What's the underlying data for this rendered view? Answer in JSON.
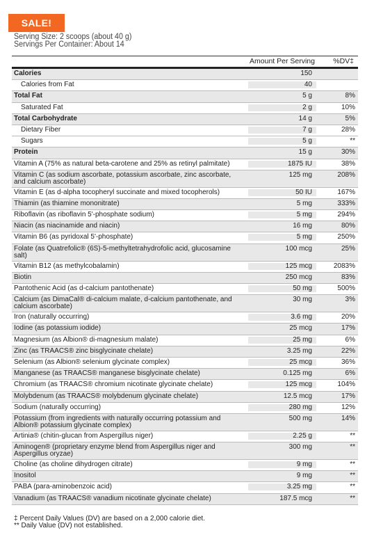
{
  "badge": {
    "label": "SALE!"
  },
  "serving": {
    "size": "Serving Size: 2 scoops (about 40 g)",
    "per_container": "Servings Per Container: About 14"
  },
  "header": {
    "amount": "Amount Per Serving",
    "dv": "%DV‡"
  },
  "rows": [
    {
      "name": "Calories",
      "amount": "150",
      "dv": "",
      "bold": true
    },
    {
      "name": "Calories from Fat",
      "amount": "40",
      "dv": "",
      "indent": true
    },
    {
      "name": "Total Fat",
      "amount": "5 g",
      "dv": "8%",
      "bold": true
    },
    {
      "name": "Saturated Fat",
      "amount": "2 g",
      "dv": "10%",
      "indent": true
    },
    {
      "name": "Total Carbohydrate",
      "amount": "14 g",
      "dv": "5%",
      "bold": true
    },
    {
      "name": "Dietary Fiber",
      "amount": "7 g",
      "dv": "28%",
      "indent": true
    },
    {
      "name": "Sugars",
      "amount": "5 g",
      "dv": "**",
      "indent": true
    },
    {
      "name": "Protein",
      "amount": "15 g",
      "dv": "30%",
      "bold": true
    },
    {
      "name": "Vitamin A (75% as natural beta-carotene and 25% as retinyl palmitate)",
      "amount": "1875 IU",
      "dv": "38%"
    },
    {
      "name": "Vitamin C (as sodium ascorbate, potassium ascorbate, zinc ascorbate, and calcium ascorbate)",
      "amount": "125 mg",
      "dv": "208%",
      "tall": true
    },
    {
      "name": "Vitamin E (as d-alpha tocopheryl succinate and mixed tocopherols)",
      "amount": "50 IU",
      "dv": "167%"
    },
    {
      "name": "Thiamin (as thiamine mononitrate)",
      "amount": "5 mg",
      "dv": "333%"
    },
    {
      "name": "Riboflavin (as riboflavin 5'-phosphate sodium)",
      "amount": "5 mg",
      "dv": "294%"
    },
    {
      "name": "Niacin (as niacinamide and niacin)",
      "amount": "16 mg",
      "dv": "80%"
    },
    {
      "name": "Vitamin B6 (as pyridoxal 5'-phosphate)",
      "amount": "5 mg",
      "dv": "250%"
    },
    {
      "name": "Folate (as Quatrefolic® (6S)-5-methyltetrahydrofolic acid, glucosamine salt)",
      "amount": "100 mcg",
      "dv": "25%",
      "tall": true
    },
    {
      "name": "Vitamin B12 (as methylcobalamin)",
      "amount": "125 mcg",
      "dv": "2083%"
    },
    {
      "name": "Biotin",
      "amount": "250 mcg",
      "dv": "83%"
    },
    {
      "name": "Pantothenic Acid (as d-calcium pantothenate)",
      "amount": "50 mg",
      "dv": "500%"
    },
    {
      "name": "Calcium (as DimaCal® di-calcium malate, d-calcium pantothenate, and calcium ascorbate)",
      "amount": "30 mg",
      "dv": "3%",
      "tall": true
    },
    {
      "name": "Iron (naturally occurring)",
      "amount": "3.6 mg",
      "dv": "20%"
    },
    {
      "name": "Iodine (as potassium iodide)",
      "amount": "25 mcg",
      "dv": "17%"
    },
    {
      "name": "Magnesium (as Albion® di-magnesium malate)",
      "amount": "25 mg",
      "dv": "6%"
    },
    {
      "name": "Zinc (as TRAACS® zinc bisglycinate chelate)",
      "amount": "3.25 mg",
      "dv": "22%"
    },
    {
      "name": "Selenium (as Albion® selenium glycinate complex)",
      "amount": "25 mcg",
      "dv": "36%"
    },
    {
      "name": "Manganese (as TRAACS® manganese bisglycinate chelate)",
      "amount": "0.125 mg",
      "dv": "6%"
    },
    {
      "name": "Chromium (as TRAACS® chromium nicotinate glycinate chelate)",
      "amount": "125 mcg",
      "dv": "104%"
    },
    {
      "name": "Molybdenum (as TRAACS® molybdenum glycinate chelate)",
      "amount": "12.5 mcg",
      "dv": "17%"
    },
    {
      "name": "Sodium (naturally occurring)",
      "amount": "280 mg",
      "dv": "12%"
    },
    {
      "name": "Potassium (from ingredients with naturally occurring potassium and Albion® potassium glycinate complex)",
      "amount": "500 mg",
      "dv": "14%",
      "tall": true
    },
    {
      "name": "Artinia® (chitin-glucan from Aspergillus niger)",
      "amount": "2.25 g",
      "dv": "**"
    },
    {
      "name": "Aminogen® (proprietary enzyme blend from Aspergillus niger and Aspergillus oryzae)",
      "amount": "300 mg",
      "dv": "**",
      "tall": true
    },
    {
      "name": "Choline (as choline dihydrogen citrate)",
      "amount": "9 mg",
      "dv": "**"
    },
    {
      "name": "Inositol",
      "amount": "9 mg",
      "dv": "**"
    },
    {
      "name": "PABA (para-aminobenzoic acid)",
      "amount": "3.25 mg",
      "dv": "**"
    },
    {
      "name": "Vanadium (as TRAACS® vanadium nicotinate glycinate chelate)",
      "amount": "187.5 mcg",
      "dv": "**"
    }
  ],
  "footnotes": {
    "dv": "‡ Percent Daily Values (DV) are based on a 2,000 calorie diet.",
    "nodv": "** Daily Value (DV) not established."
  }
}
